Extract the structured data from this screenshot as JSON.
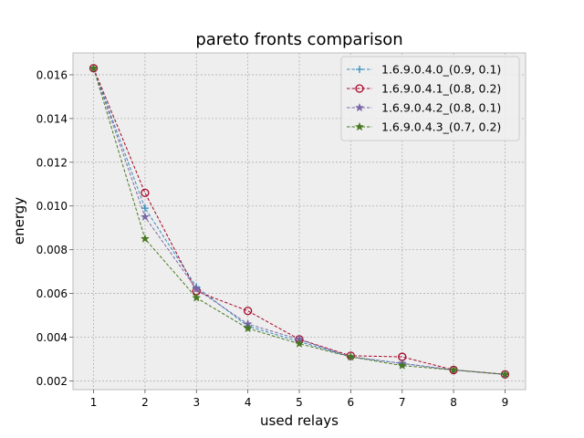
{
  "chart_data": {
    "type": "line",
    "title": "pareto fronts comparison",
    "xlabel": "used relays",
    "ylabel": "energy",
    "x": [
      1,
      2,
      3,
      4,
      5,
      6,
      7,
      8,
      9
    ],
    "xlim": [
      0.6,
      9.4
    ],
    "ylim": [
      0.0016,
      0.017
    ],
    "xticks": [
      1,
      2,
      3,
      4,
      5,
      6,
      7,
      8,
      9
    ],
    "xtick_labels": [
      "1",
      "2",
      "3",
      "4",
      "5",
      "6",
      "7",
      "8",
      "9"
    ],
    "yticks": [
      0.002,
      0.004,
      0.006,
      0.008,
      0.01,
      0.012,
      0.014,
      0.016
    ],
    "ytick_labels": [
      "0.002",
      "0.004",
      "0.006",
      "0.008",
      "0.010",
      "0.012",
      "0.014",
      "0.016"
    ],
    "grid": true,
    "legend_position": "upper-right",
    "series": [
      {
        "name": "1.6.9.0.4.0_(0.9, 0.1)",
        "color": "#348ABD",
        "marker": "plus",
        "values": [
          0.0163,
          0.0099,
          0.0063,
          0.0045,
          0.0038,
          0.0031,
          0.0028,
          0.0025,
          0.0023
        ]
      },
      {
        "name": "1.6.9.0.4.1_(0.8, 0.2)",
        "color": "#A60628",
        "marker": "circle",
        "values": [
          0.0163,
          0.0106,
          0.0061,
          0.0052,
          0.0039,
          0.00315,
          0.0031,
          0.0025,
          0.0023
        ]
      },
      {
        "name": "1.6.9.0.4.2_(0.8, 0.1)",
        "color": "#7A68A6",
        "marker": "star",
        "values": [
          0.0163,
          0.0095,
          0.0062,
          0.0046,
          0.0039,
          0.0031,
          0.0028,
          0.0025,
          0.0023
        ]
      },
      {
        "name": "1.6.9.0.4.3_(0.7, 0.2)",
        "color": "#467821",
        "marker": "star",
        "values": [
          0.0163,
          0.0085,
          0.0058,
          0.0044,
          0.0037,
          0.0031,
          0.0027,
          0.0025,
          0.0023
        ]
      }
    ]
  }
}
